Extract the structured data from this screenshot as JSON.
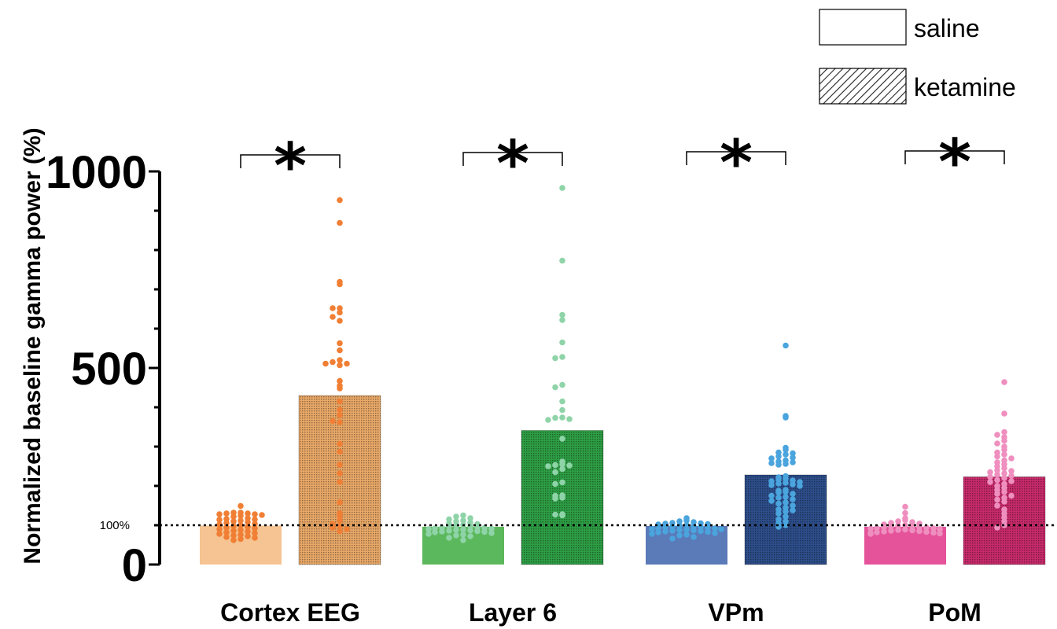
{
  "chart_data": {
    "type": "bar",
    "ylabel": "Normalized baseline gamma power (%)",
    "ylim": [
      0,
      1000
    ],
    "major_ticks": [
      "0",
      "500",
      "1000"
    ],
    "minor_tick_step": 100,
    "reference_line": {
      "value": 100,
      "label": "100%"
    },
    "categories": [
      "Cortex EEG",
      "Layer 6",
      "VPm",
      "PoM"
    ],
    "legend": [
      {
        "name": "saline",
        "pattern": "plain"
      },
      {
        "name": "ketamine",
        "pattern": "hatched"
      }
    ],
    "significance_marker": "*",
    "significance": [
      true,
      true,
      true,
      true
    ],
    "series": [
      {
        "name": "saline",
        "values": [
          99,
          96,
          98,
          96
        ]
      },
      {
        "name": "ketamine",
        "values": [
          430,
          341,
          228,
          223
        ]
      }
    ],
    "colors": {
      "saline": [
        "#f5c492",
        "#5cb85c",
        "#5b7ab8",
        "#e5539a"
      ],
      "ketamine": [
        "#e8a868",
        "#2e9e45",
        "#2d4e8a",
        "#c72a6a"
      ],
      "points": [
        "#f07f35",
        "#8fd4a8",
        "#4aa4dd",
        "#ef8fbf"
      ]
    },
    "points": {
      "saline": [
        [
          149,
          132,
          132,
          130,
          130,
          128,
          128,
          126,
          124,
          122,
          118,
          116,
          115,
          114,
          112,
          110,
          108,
          106,
          104,
          102,
          100,
          98,
          96,
          94,
          92,
          90,
          88,
          86,
          84,
          82,
          80,
          78,
          76,
          74,
          72,
          70,
          68,
          65,
          62
        ],
        [
          125,
          122,
          118,
          115,
          112,
          110,
          107,
          105,
          103,
          101,
          100,
          98,
          97,
          95,
          94,
          93,
          92,
          91,
          90,
          89,
          88,
          87,
          86,
          85,
          84,
          83,
          82,
          80,
          78,
          76,
          74,
          72,
          68,
          62
        ],
        [
          118,
          112,
          110,
          108,
          106,
          105,
          104,
          103,
          102,
          100,
          99,
          98,
          97,
          96,
          95,
          94,
          93,
          92,
          91,
          90,
          89,
          88,
          87,
          86,
          85,
          84,
          83,
          82,
          80,
          78,
          76,
          74,
          70,
          66
        ],
        [
          147,
          131,
          118,
          113,
          110,
          108,
          106,
          104,
          102,
          100,
          99,
          98,
          97,
          96,
          95,
          94,
          93,
          92,
          91,
          90,
          89,
          88,
          87,
          86,
          85,
          84,
          83,
          82,
          81,
          80,
          79,
          78
        ]
      ],
      "ketamine": [
        [
          927,
          869,
          719,
          713,
          652,
          652,
          641,
          630,
          620,
          563,
          545,
          520,
          515,
          511,
          511,
          507,
          467,
          455,
          448,
          415,
          394,
          380,
          362,
          365,
          307,
          287,
          254,
          232,
          210,
          158,
          131,
          124,
          112,
          103,
          98,
          94,
          90,
          85
        ],
        [
          958,
          773,
          635,
          622,
          565,
          528,
          525,
          457,
          451,
          415,
          393,
          374,
          373,
          370,
          368,
          320,
          262,
          255,
          253,
          252,
          250,
          243,
          235,
          209,
          205,
          176,
          175,
          170,
          168,
          128,
          127,
          125
        ],
        [
          557,
          378,
          374,
          297,
          292,
          285,
          283,
          280,
          275,
          272,
          270,
          265,
          262,
          260,
          258,
          256,
          254,
          225,
          222,
          218,
          216,
          214,
          212,
          210,
          208,
          206,
          204,
          202,
          200,
          190,
          188,
          185,
          183,
          180,
          175,
          172,
          170,
          166,
          162,
          158,
          155,
          150,
          145,
          140,
          138,
          135,
          130,
          122,
          115,
          110,
          105,
          100,
          96
        ],
        [
          464,
          384,
          337,
          330,
          324,
          315,
          308,
          300,
          292,
          285,
          280,
          275,
          270,
          265,
          260,
          255,
          250,
          245,
          240,
          238,
          235,
          232,
          229,
          226,
          223,
          220,
          215,
          212,
          210,
          205,
          200,
          195,
          190,
          185,
          180,
          175,
          170,
          165,
          160,
          150,
          140,
          130,
          120,
          110,
          100,
          94
        ]
      ]
    }
  }
}
